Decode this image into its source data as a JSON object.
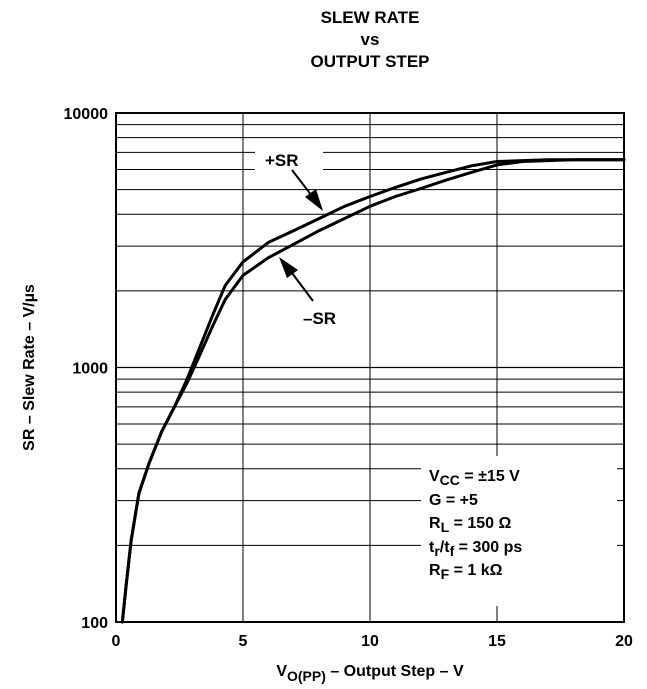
{
  "title_lines": [
    "SLEW RATE",
    "vs",
    "OUTPUT STEP"
  ],
  "conditions": [
    {
      "base": "V",
      "sub": "CC",
      "rest": " = ±15 V"
    },
    {
      "base": "G = +5",
      "sub": "",
      "rest": ""
    },
    {
      "base": "R",
      "sub": "L",
      "rest": " = 150 Ω"
    },
    {
      "base": "t",
      "sub": "r",
      "rest": "/t",
      "sub2": "f",
      "rest2": " = 300 ps"
    },
    {
      "base": "R",
      "sub": "F",
      "rest": " = 1 kΩ"
    }
  ],
  "chart_data": {
    "type": "line",
    "title": "SLEW RATE vs OUTPUT STEP",
    "xlabel": {
      "base": "V",
      "sub": "O(PP)",
      "rest": " – Output Step – V"
    },
    "ylabel": "SR – Slew Rate – V/µs",
    "xlim": [
      0,
      20
    ],
    "ylim": [
      100,
      10000
    ],
    "yscale": "log",
    "xticks": [
      0,
      5,
      10,
      15,
      20
    ],
    "yticks": [
      100,
      1000,
      10000
    ],
    "grid": true,
    "series": [
      {
        "name": "+SR",
        "x": [
          0.25,
          0.4,
          0.6,
          0.9,
          1.3,
          1.8,
          2.3,
          2.8,
          3.3,
          3.8,
          4.3,
          5.0,
          6.0,
          7.0,
          8.0,
          9.0,
          10.0,
          11.0,
          12.0,
          13.0,
          14.0,
          15.0,
          16.0,
          17.0,
          18.0,
          19.0,
          20.0
        ],
        "y": [
          100,
          140,
          210,
          320,
          420,
          560,
          700,
          900,
          1200,
          1600,
          2100,
          2600,
          3100,
          3450,
          3850,
          4300,
          4700,
          5100,
          5500,
          5850,
          6200,
          6450,
          6500,
          6550,
          6550,
          6550,
          6550
        ]
      },
      {
        "name": "–SR",
        "x": [
          0.25,
          0.4,
          0.6,
          0.9,
          1.3,
          1.8,
          2.3,
          2.8,
          3.3,
          3.8,
          4.3,
          5.0,
          6.0,
          7.0,
          8.0,
          9.0,
          10.0,
          11.0,
          12.0,
          13.0,
          14.0,
          15.0,
          16.0,
          17.0,
          18.0,
          19.0,
          20.0
        ],
        "y": [
          100,
          140,
          210,
          320,
          420,
          560,
          700,
          870,
          1120,
          1450,
          1850,
          2300,
          2700,
          3050,
          3450,
          3850,
          4300,
          4700,
          5050,
          5450,
          5850,
          6250,
          6450,
          6500,
          6550,
          6550,
          6550
        ]
      }
    ],
    "annotations": [
      "+SR",
      "–SR"
    ]
  }
}
